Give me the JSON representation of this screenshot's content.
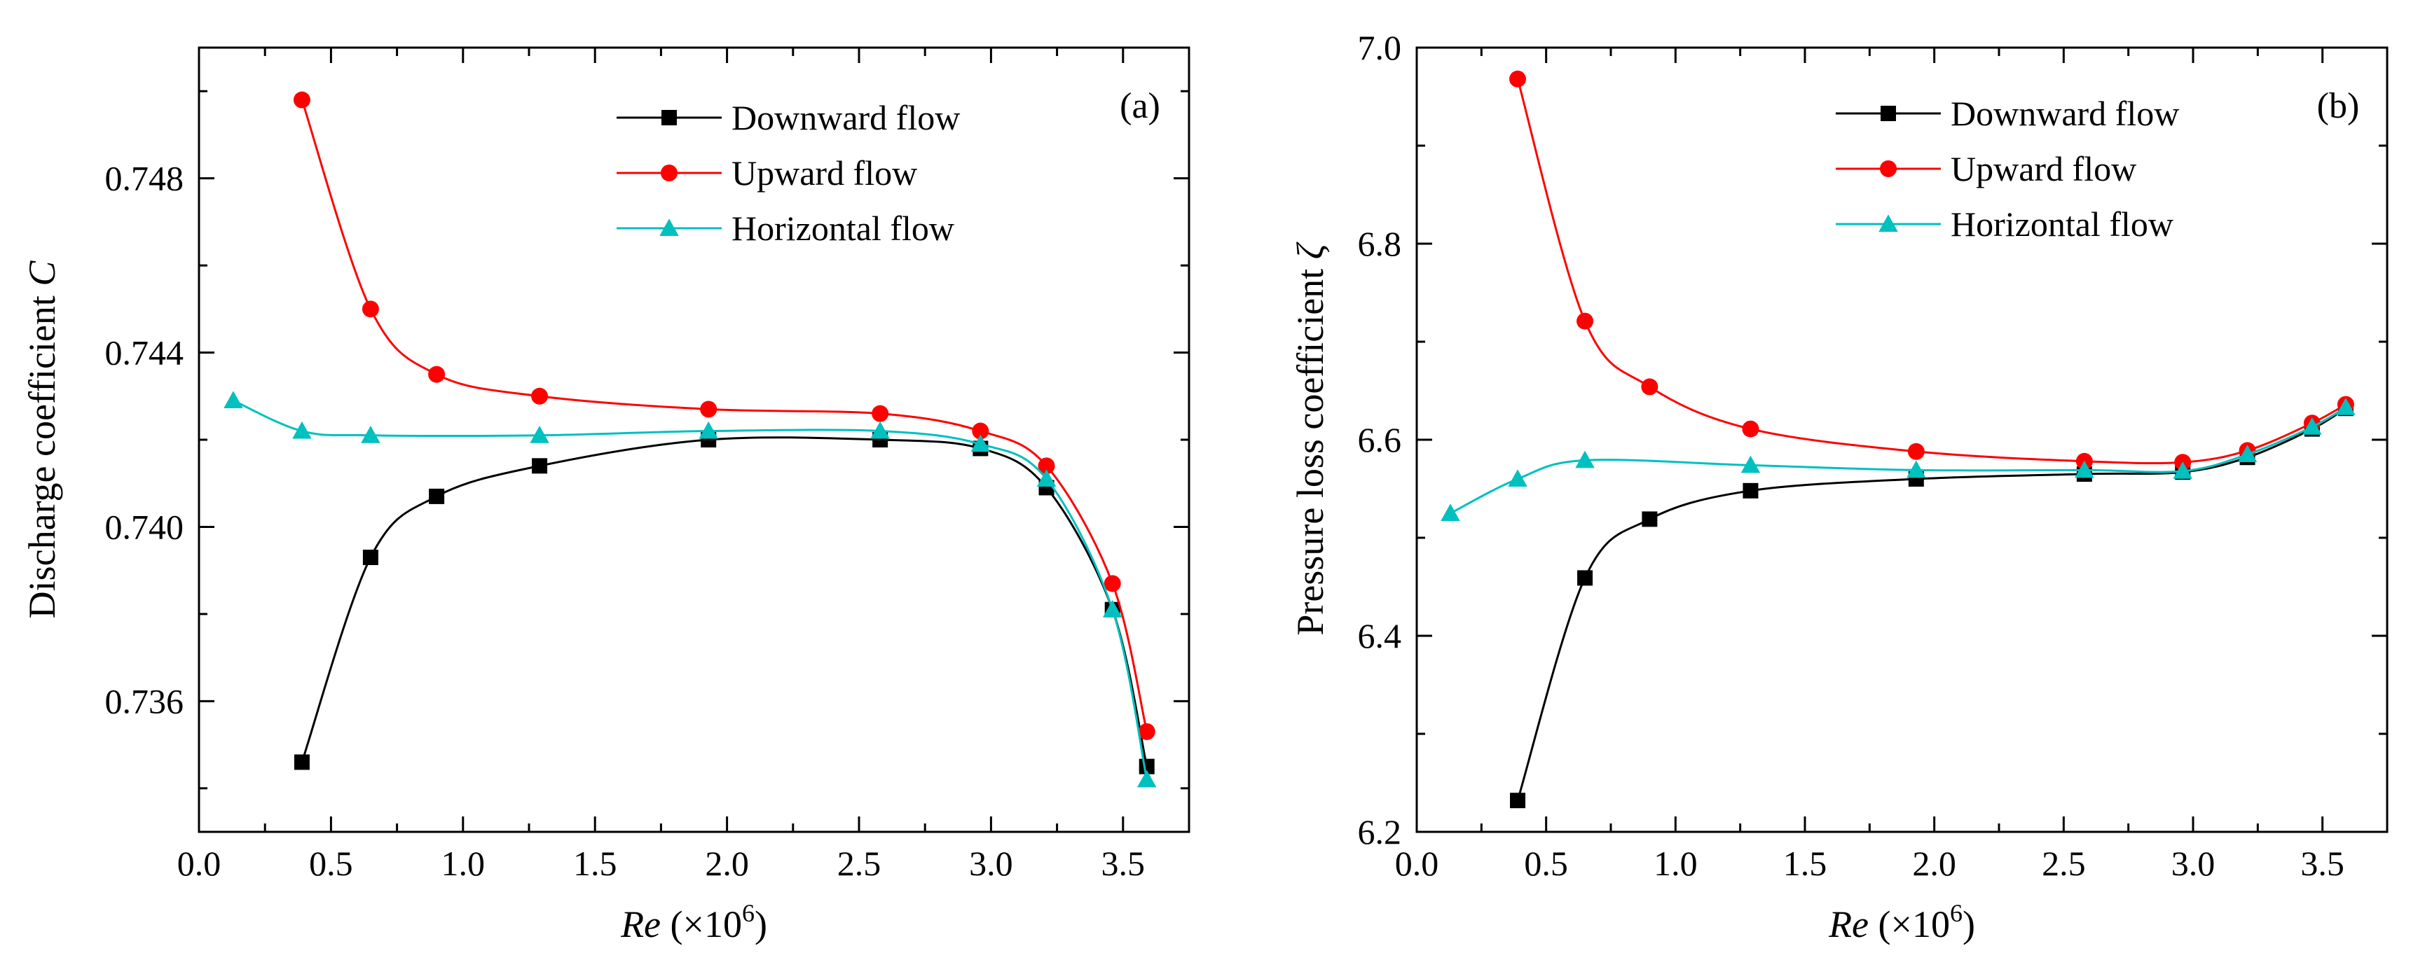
{
  "chart_data": [
    {
      "type": "line",
      "panel_label": "(a)",
      "xlabel": {
        "var": "Re",
        "unit": "(×10",
        "exp": "6",
        "close": ")"
      },
      "ylabel": {
        "text": "Discharge coefficient ",
        "var": "C"
      },
      "xlim": [
        0.0,
        3.75
      ],
      "ylim": [
        0.733,
        0.751
      ],
      "xticks": [
        0.0,
        0.5,
        1.0,
        1.5,
        2.0,
        2.5,
        3.0,
        3.5
      ],
      "xtick_labels": [
        "0.0",
        "0.5",
        "1.0",
        "1.5",
        "2.0",
        "2.5",
        "3.0",
        "3.5"
      ],
      "yticks": [
        0.736,
        0.74,
        0.744,
        0.748
      ],
      "ytick_labels": [
        "0.736",
        "0.740",
        "0.744",
        "0.748"
      ],
      "grid": false,
      "legend_position": "top-right",
      "series": [
        {
          "name": "Downward flow",
          "color": "#000000",
          "marker": "square",
          "x": [
            0.39,
            0.65,
            0.9,
            1.29,
            1.93,
            2.58,
            2.96,
            3.21,
            3.46,
            3.59
          ],
          "y": [
            0.7346,
            0.7393,
            0.7407,
            0.7414,
            0.742,
            0.742,
            0.7418,
            0.7409,
            0.7381,
            0.7345
          ]
        },
        {
          "name": "Upward flow",
          "color": "#ff0000",
          "marker": "circle",
          "x": [
            0.39,
            0.65,
            0.9,
            1.29,
            1.93,
            2.58,
            2.96,
            3.21,
            3.46,
            3.59
          ],
          "y": [
            0.7498,
            0.745,
            0.7435,
            0.743,
            0.7427,
            0.7426,
            0.7422,
            0.7414,
            0.7387,
            0.7353
          ]
        },
        {
          "name": "Horizontal flow",
          "color": "#00c0c0",
          "marker": "triangle",
          "x": [
            0.13,
            0.39,
            0.65,
            1.29,
            1.93,
            2.58,
            2.96,
            3.21,
            3.46,
            3.59
          ],
          "y": [
            0.7429,
            0.7422,
            0.7421,
            0.7421,
            0.7422,
            0.7422,
            0.7419,
            0.7411,
            0.7381,
            0.7342
          ]
        }
      ]
    },
    {
      "type": "line",
      "panel_label": "(b)",
      "xlabel": {
        "var": "Re",
        "unit": "(×10",
        "exp": "6",
        "close": ")"
      },
      "ylabel": {
        "text": "Pressure loss coefficient ",
        "var": "ζ"
      },
      "xlim": [
        0.0,
        3.75
      ],
      "ylim": [
        6.2,
        7.0
      ],
      "xticks": [
        0.0,
        0.5,
        1.0,
        1.5,
        2.0,
        2.5,
        3.0,
        3.5
      ],
      "xtick_labels": [
        "0.0",
        "0.5",
        "1.0",
        "1.5",
        "2.0",
        "2.5",
        "3.0",
        "3.5"
      ],
      "yticks": [
        6.2,
        6.4,
        6.6,
        6.8,
        7.0
      ],
      "ytick_labels": [
        "6.2",
        "6.4",
        "6.6",
        "6.8",
        "7.0"
      ],
      "grid": false,
      "legend_position": "top-right",
      "series": [
        {
          "name": "Downward flow",
          "color": "#000000",
          "marker": "square",
          "x": [
            0.39,
            0.65,
            0.9,
            1.29,
            1.93,
            2.58,
            2.96,
            3.21,
            3.46,
            3.59
          ],
          "y": [
            6.232,
            6.459,
            6.519,
            6.548,
            6.56,
            6.565,
            6.567,
            6.582,
            6.611,
            6.632
          ]
        },
        {
          "name": "Upward flow",
          "color": "#ff0000",
          "marker": "circle",
          "x": [
            0.39,
            0.65,
            0.9,
            1.29,
            1.93,
            2.58,
            2.96,
            3.21,
            3.46,
            3.59
          ],
          "y": [
            6.968,
            6.721,
            6.654,
            6.611,
            6.588,
            6.578,
            6.577,
            6.589,
            6.617,
            6.636
          ]
        },
        {
          "name": "Horizontal flow",
          "color": "#00c0c0",
          "marker": "triangle",
          "x": [
            0.13,
            0.39,
            0.65,
            1.29,
            1.93,
            2.58,
            2.96,
            3.21,
            3.46,
            3.59
          ],
          "y": [
            6.525,
            6.56,
            6.579,
            6.574,
            6.569,
            6.569,
            6.568,
            6.585,
            6.613,
            6.633
          ]
        }
      ]
    }
  ]
}
